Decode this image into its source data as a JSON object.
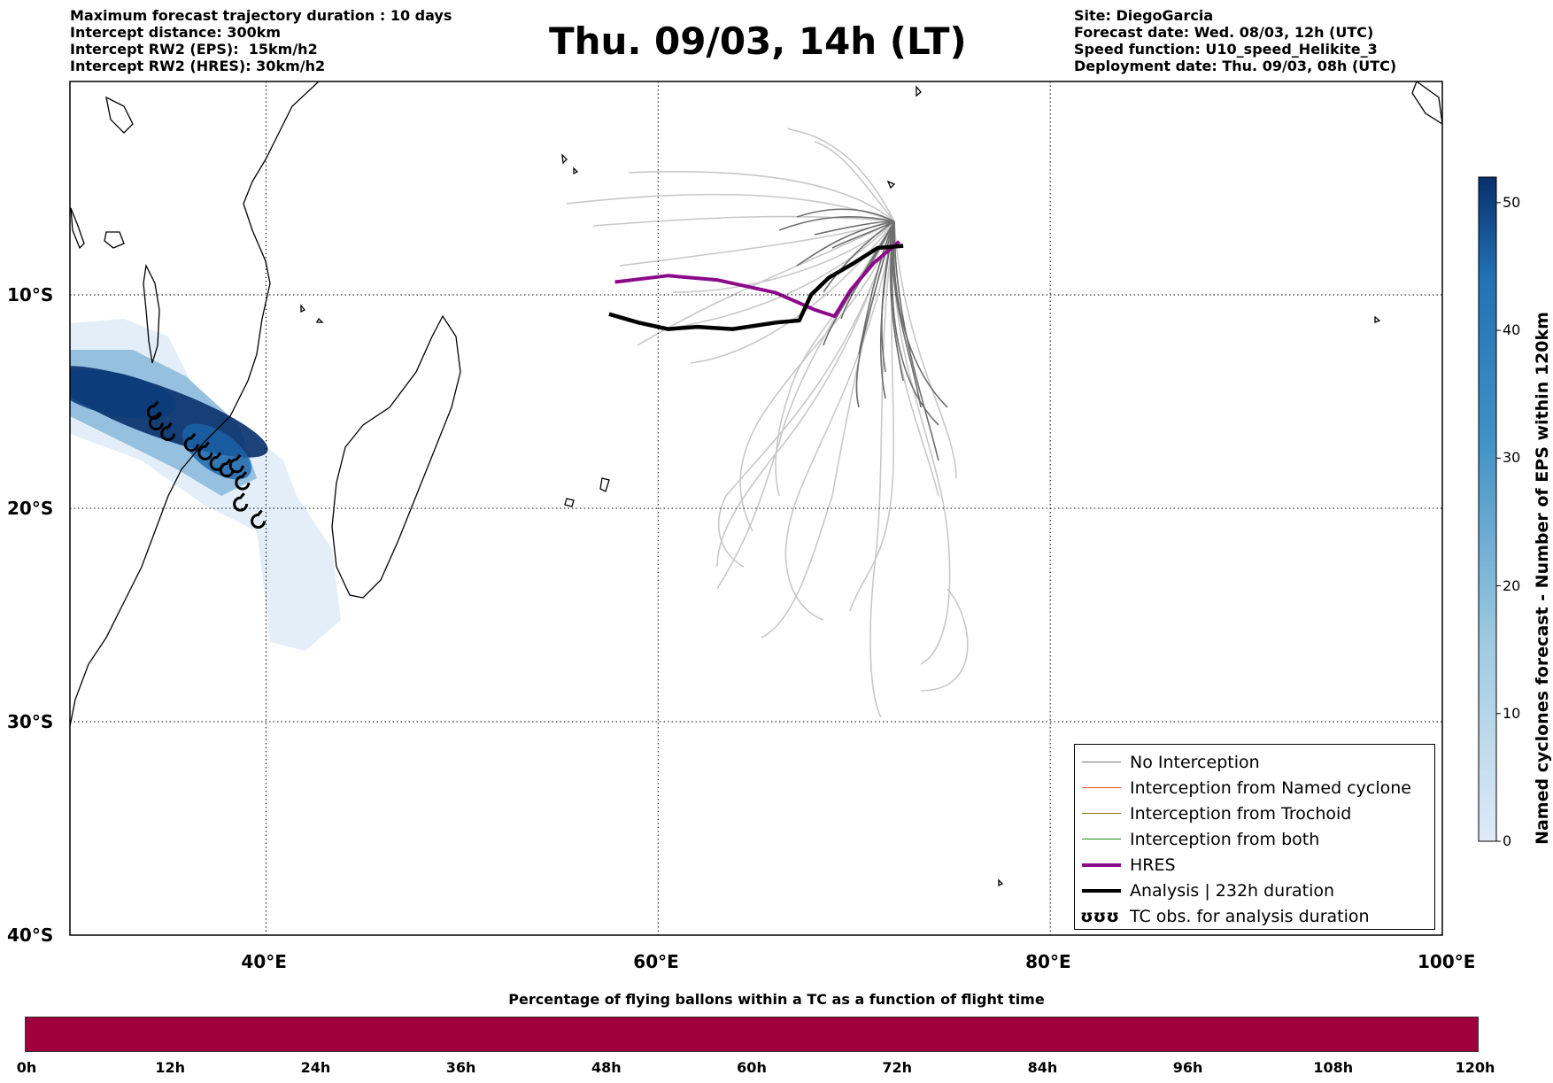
{
  "info_left": [
    "Maximum forecast trajectory duration : 10 days",
    "Intercept distance: 300km",
    "Intercept RW2 (EPS):  15km/h2",
    "Intercept RW2 (HRES): 30km/h2"
  ],
  "title": "Thu. 09/03, 14h (LT)",
  "info_right": [
    "Site: DiegoGarcia",
    "Forecast date: Wed. 08/03, 12h (UTC)",
    "Speed function: U10_speed_Helikite_3",
    "Deployment date: Thu. 09/03, 08h (UTC)"
  ],
  "map": {
    "lon_range": [
      30,
      100
    ],
    "lat_range": [
      -40,
      0
    ],
    "lon_ticks": [
      {
        "value": 40,
        "label": "40°E"
      },
      {
        "value": 60,
        "label": "60°E"
      },
      {
        "value": 80,
        "label": "80°E"
      },
      {
        "value": 100,
        "label": "100°E"
      }
    ],
    "lat_ticks": [
      {
        "value": -10,
        "label": "10°S"
      },
      {
        "value": -20,
        "label": "20°S"
      },
      {
        "value": -30,
        "label": "30°S"
      },
      {
        "value": -40,
        "label": "40°S"
      }
    ],
    "grid": "dotted",
    "colors": {
      "no_interception": "#6e6e6e",
      "no_interception_light": "#c8c8c8",
      "hres": "#8b0a8b",
      "hres_light": "#ee55ee",
      "analysis": "#000000",
      "density_dark": "#08306b",
      "density_light": "#deebf7"
    }
  },
  "colorbar": {
    "label": "Named cyclones forecast - Number of EPS within 120km",
    "ticks": [
      "0",
      "10",
      "20",
      "30",
      "40",
      "50"
    ],
    "range": [
      0,
      52
    ]
  },
  "legend": [
    {
      "label": "No Interception",
      "color": "#777777",
      "kind": "thin"
    },
    {
      "label": "Interception from Named cyclone",
      "color": "#e8541c",
      "kind": "thin"
    },
    {
      "label": "Interception from Trochoid",
      "color": "#8a7a10",
      "kind": "thin"
    },
    {
      "label": "Interception from both",
      "color": "#1a8a1a",
      "kind": "thin"
    },
    {
      "label": "HRES",
      "color": "#8b0a8b",
      "kind": "thick"
    },
    {
      "label": "Analysis | 232h duration",
      "color": "#000000",
      "kind": "thick"
    },
    {
      "label": "TC obs. for analysis duration",
      "color": "#000000",
      "kind": "symbol",
      "symbol": "ʊʊʊ"
    }
  ],
  "bottom": {
    "title": "Percentage of flying ballons within a TC as a function of flight time",
    "bar_color": "#a0003c",
    "ticks": [
      "0h",
      "12h",
      "24h",
      "36h",
      "48h",
      "60h",
      "72h",
      "84h",
      "96h",
      "108h",
      "120h"
    ]
  },
  "chart_data": {
    "type": "line",
    "xlabel": "",
    "ylabel": "",
    "series": [
      {
        "name": "HRES",
        "lon": [
          72.3,
          71.0,
          69.8,
          69.0,
          68.0,
          66.0,
          63.0,
          60.5,
          57.8
        ],
        "lat": [
          -7.5,
          -8.5,
          -9.8,
          -11.0,
          -10.7,
          -9.9,
          -9.3,
          -9.1,
          -9.4
        ]
      },
      {
        "name": "Analysis | 232h duration",
        "lon": [
          72.5,
          71.2,
          70.0,
          68.7,
          67.8,
          67.2,
          66.0,
          63.8,
          62.0,
          60.5,
          59.0,
          57.5
        ],
        "lat": [
          -7.7,
          -7.8,
          -8.5,
          -9.2,
          -10.0,
          -11.2,
          -11.3,
          -11.6,
          -11.5,
          -11.6,
          -11.3,
          -10.9
        ]
      }
    ],
    "tc_obs": {
      "lon": [
        34.3,
        34.4,
        35.0,
        36.2,
        36.9,
        37.5,
        38.0,
        38.5,
        38.8,
        38.7,
        39.6
      ],
      "lat": [
        -15.5,
        -16.0,
        -16.5,
        -17.0,
        -17.4,
        -17.9,
        -18.2,
        -18.0,
        -18.8,
        -19.8,
        -20.6
      ]
    }
  }
}
